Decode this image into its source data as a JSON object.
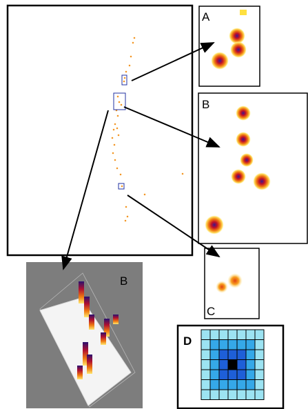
{
  "labels": {
    "panel_a": "A",
    "panel_b": "B",
    "panel_c": "C",
    "panel_3d": "B",
    "panel_d": "D"
  }
}
